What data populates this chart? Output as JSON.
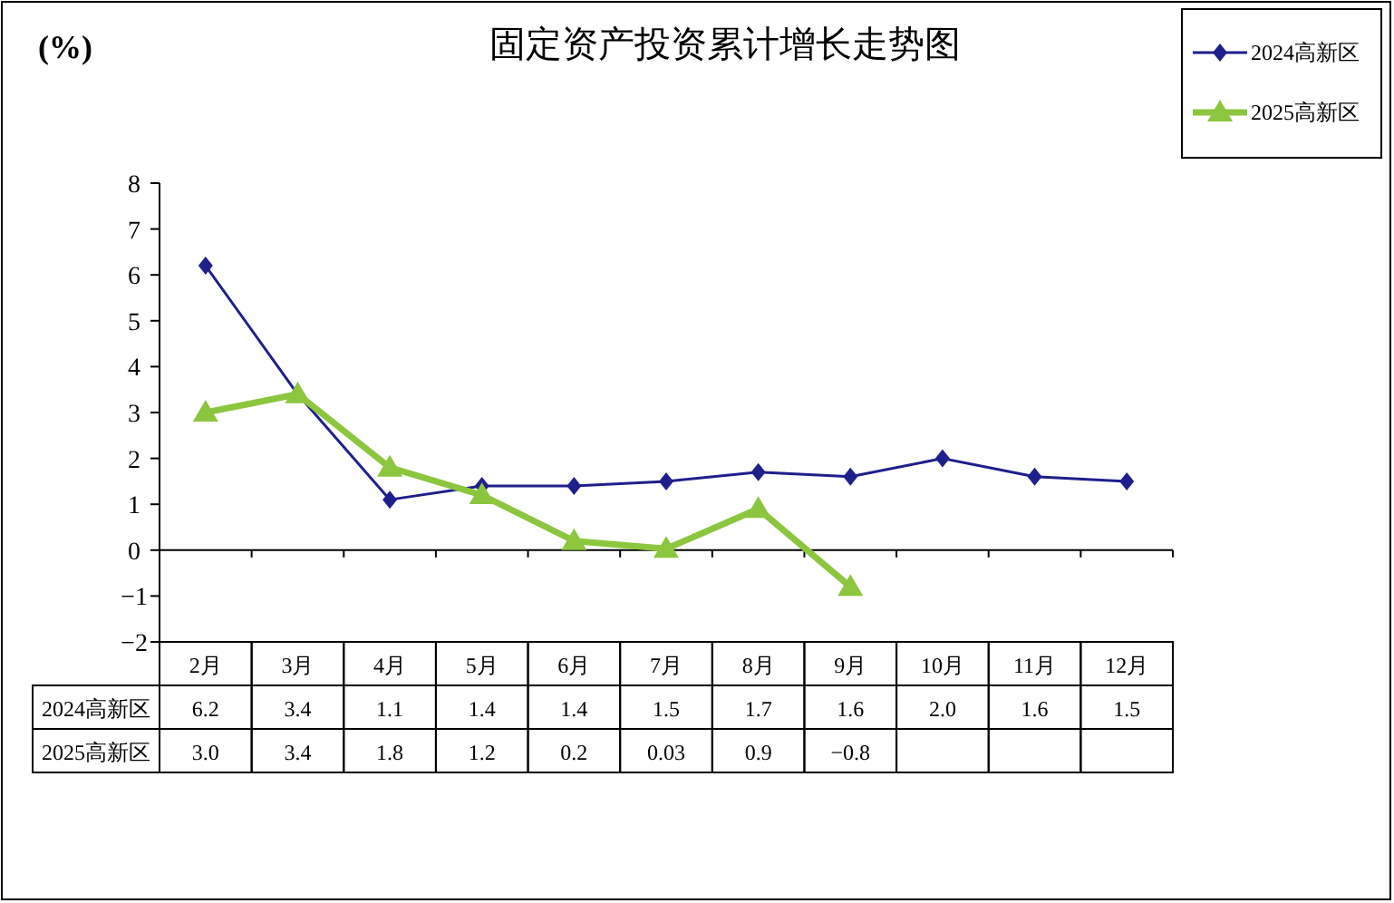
{
  "chart_data": {
    "type": "line",
    "title": "固定资产投资累计增长走势图",
    "ylabel": "(%)",
    "categories": [
      "2月",
      "3月",
      "4月",
      "5月",
      "6月",
      "7月",
      "8月",
      "9月",
      "10月",
      "11月",
      "12月"
    ],
    "ylim": [
      -2,
      8
    ],
    "yticks": [
      {
        "value": -2,
        "label": "−2"
      },
      {
        "value": -1,
        "label": "−1"
      },
      0,
      1,
      2,
      3,
      4,
      5,
      6,
      7,
      8
    ],
    "legend": "top right",
    "line_style": "solid",
    "series": [
      {
        "name": "2024高新区",
        "color": "#1f1f8c",
        "marker": "diamond",
        "values": [
          6.2,
          3.4,
          1.1,
          1.4,
          1.4,
          1.5,
          1.7,
          1.6,
          2.0,
          1.6,
          1.5
        ],
        "value_labels": [
          "6.2",
          "3.4",
          "1.1",
          "1.4",
          "1.4",
          "1.5",
          "1.7",
          "1.6",
          "2.0",
          "1.6",
          "1.5"
        ]
      },
      {
        "name": "2025高新区",
        "color": "#8cc63e",
        "marker": "triangle",
        "values": [
          3.0,
          3.4,
          1.8,
          1.2,
          0.2,
          0.03,
          0.9,
          -0.8,
          null,
          null,
          null
        ],
        "value_labels": [
          "3.0",
          "3.4",
          "1.8",
          "1.2",
          "0.2",
          "0.03",
          "0.9",
          "−0.8",
          null,
          null,
          null
        ]
      }
    ]
  }
}
